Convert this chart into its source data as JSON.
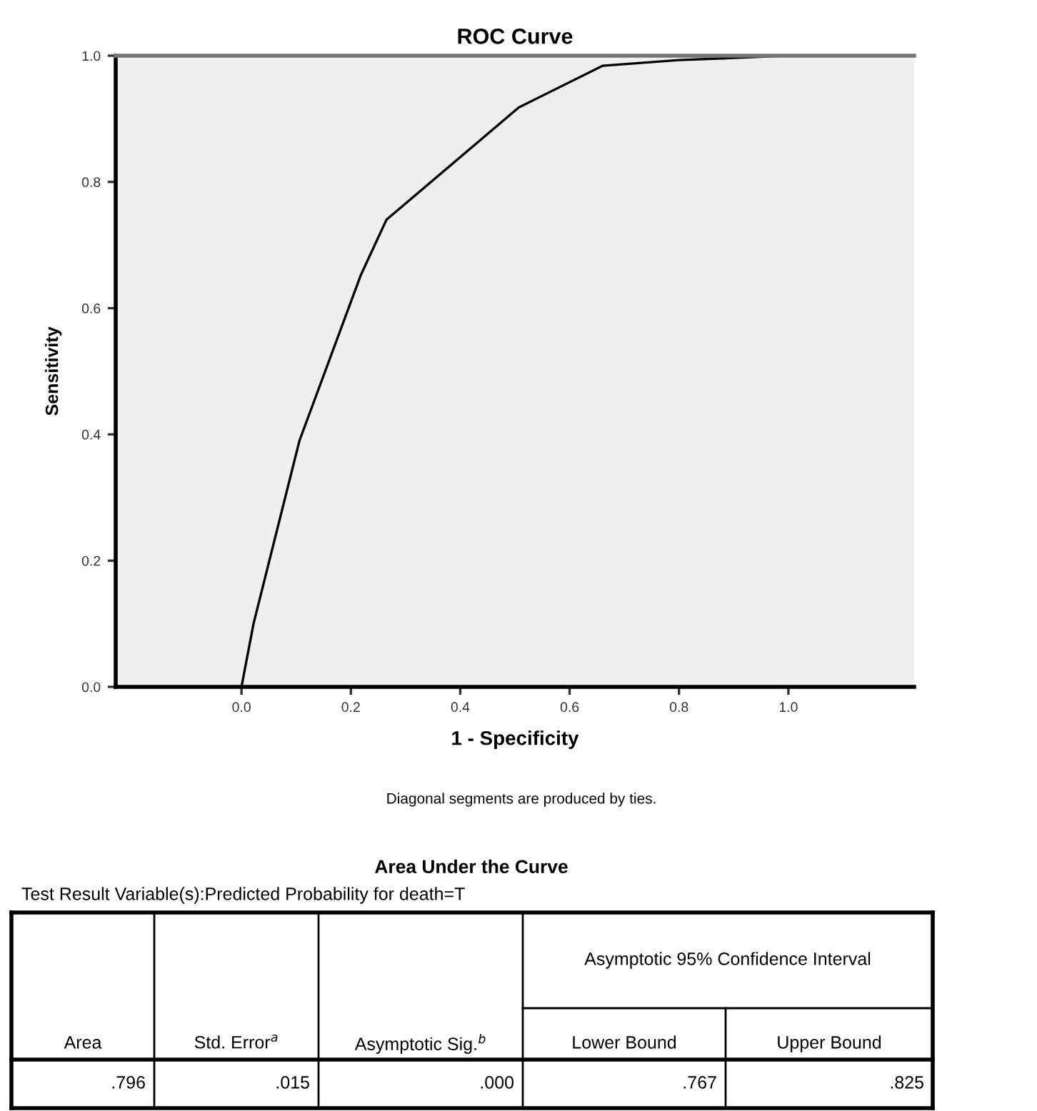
{
  "chart_data": {
    "type": "line",
    "title": "ROC Curve",
    "xlabel": "1 - Specificity",
    "ylabel": "Sensitivity",
    "x": [
      0.0,
      0.022,
      0.106,
      0.218,
      0.265,
      0.507,
      0.66,
      0.8,
      1.0
    ],
    "series": [
      {
        "color": "#000000",
        "values": [
          0.0,
          0.1,
          0.39,
          0.652,
          0.74,
          0.918,
          0.984,
          0.993,
          1.0
        ]
      }
    ],
    "xlim": [
      -0.23,
      1.23
    ],
    "ylim": [
      0.0,
      1.0
    ],
    "xticks": [
      {
        "value": 0.0,
        "label": "0.0"
      },
      0.2,
      0.4,
      0.6,
      0.8,
      {
        "value": 1.0,
        "label": "1.0"
      }
    ],
    "yticks": [
      {
        "value": 0.0,
        "label": "0.0"
      },
      0.2,
      0.4,
      0.6,
      0.8,
      {
        "value": 1.0,
        "label": "1.0"
      }
    ],
    "grid": false,
    "legend": false,
    "marker": "none",
    "line_style": "solid",
    "annotations": [
      "Diagonal segments are produced by ties.",
      "Area Under the Curve",
      "Test Result Variable(s):Predicted Probability for death=T",
      "Asymptotic 95% Confidence Interval",
      "Area",
      "Std. Error$^{a}$",
      "Asymptotic Sig.$^{b}$",
      "Lower Bound",
      "Upper Bound",
      ".796",
      ".015",
      ".000",
      ".767",
      ".825"
    ]
  }
}
